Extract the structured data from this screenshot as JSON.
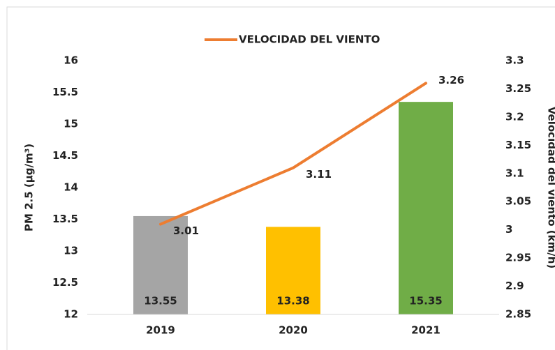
{
  "chart_data": {
    "type": "bar",
    "categories": [
      "2019",
      "2020",
      "2021"
    ],
    "values": [
      13.55,
      13.38,
      15.35
    ],
    "colors": [
      "#a5a5a5",
      "#ffc000",
      "#70ad47"
    ],
    "series": [
      {
        "name": "VELOCIDAD DEL VIENTO",
        "color": "#ed7d31",
        "values": [
          3.01,
          3.11,
          3.26
        ],
        "axis": "y2"
      }
    ],
    "y_label": "PM 2.5 (µg/m³)",
    "y2_label": "Velocidad del viento (km/h)",
    "ylim": [
      12,
      16
    ],
    "yticks": [
      12,
      12.5,
      13,
      13.5,
      14,
      14.5,
      15,
      15.5,
      16
    ],
    "y2lim": [
      2.85,
      3.3
    ],
    "y2ticks": [
      2.85,
      2.9,
      2.95,
      3,
      3.05,
      3.1,
      3.15,
      3.2,
      3.25,
      3.3
    ],
    "grid": false,
    "legend": "top"
  }
}
